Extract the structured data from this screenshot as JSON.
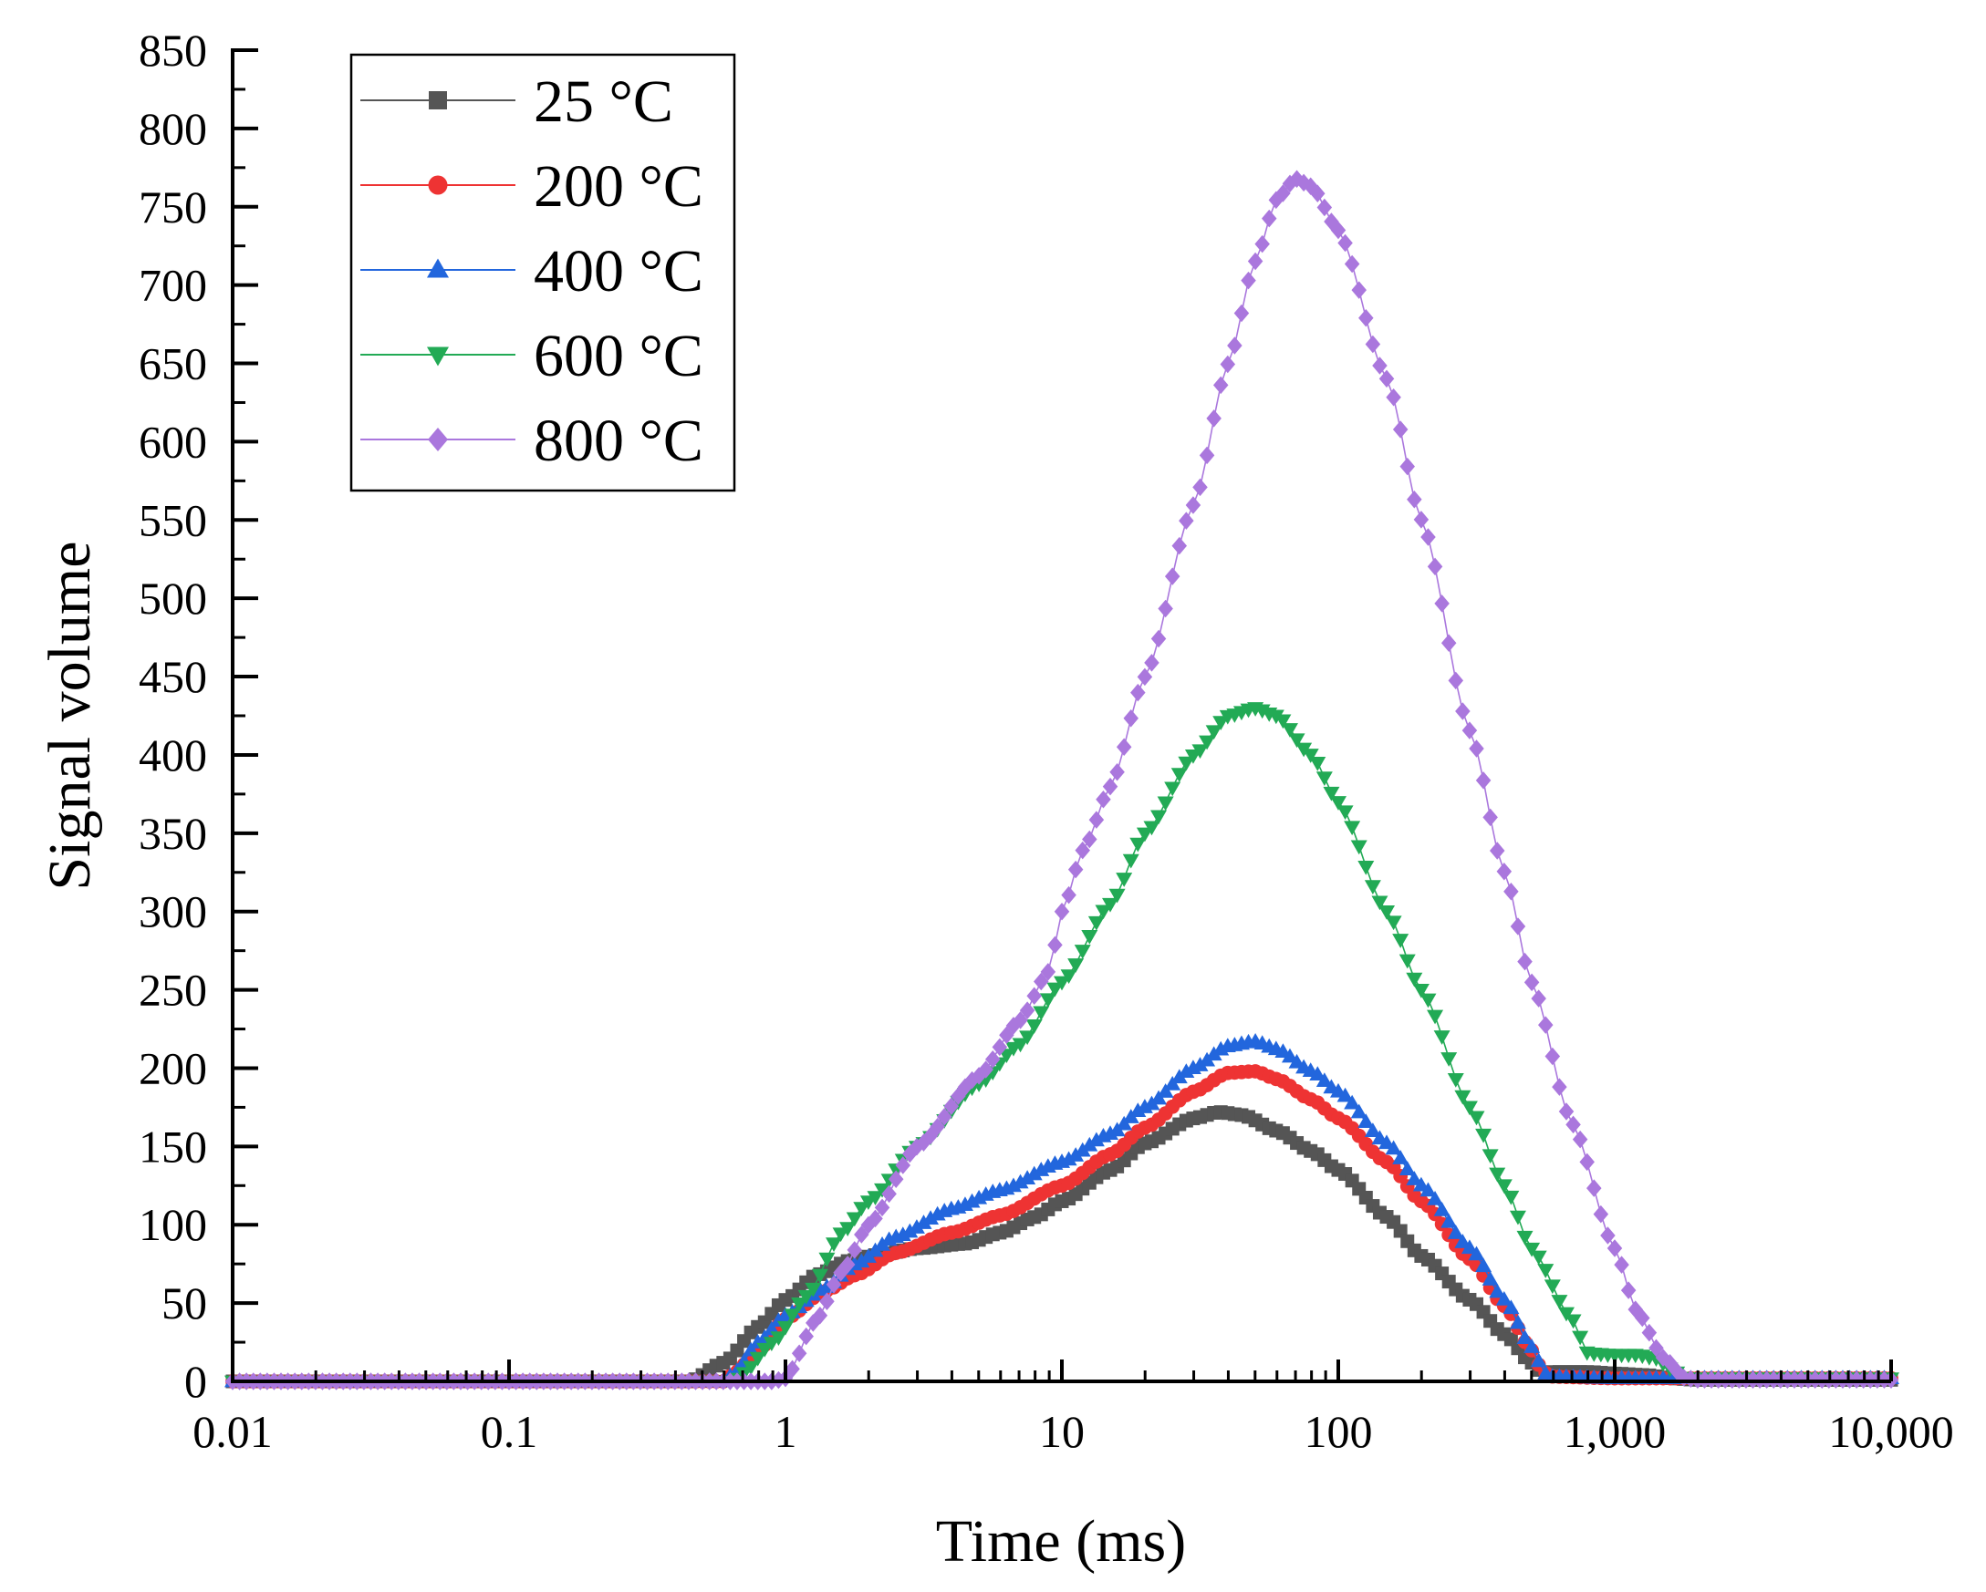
{
  "chart_data": {
    "type": "scatter",
    "xscale": "log",
    "xlabel": "Time (ms)",
    "ylabel": "Signal volume",
    "xlim": [
      0.01,
      10000
    ],
    "ylim": [
      0,
      850
    ],
    "xticks": [
      {
        "value": 0.01,
        "label": "0.01"
      },
      {
        "value": 0.1,
        "label": "0.1"
      },
      {
        "value": 1,
        "label": "1"
      },
      {
        "value": 10,
        "label": "10"
      },
      {
        "value": 100,
        "label": "100"
      },
      {
        "value": 1000,
        "label": "1,000"
      },
      {
        "value": 10000,
        "label": "10,000"
      }
    ],
    "yticks": [
      {
        "value": 0,
        "label": "0"
      },
      {
        "value": 50,
        "label": "50"
      },
      {
        "value": 100,
        "label": "100"
      },
      {
        "value": 150,
        "label": "150"
      },
      {
        "value": 200,
        "label": "200"
      },
      {
        "value": 250,
        "label": "250"
      },
      {
        "value": 300,
        "label": "300"
      },
      {
        "value": 350,
        "label": "350"
      },
      {
        "value": 400,
        "label": "400"
      },
      {
        "value": 450,
        "label": "450"
      },
      {
        "value": 500,
        "label": "500"
      },
      {
        "value": 550,
        "label": "550"
      },
      {
        "value": 600,
        "label": "600"
      },
      {
        "value": 650,
        "label": "650"
      },
      {
        "value": 700,
        "label": "700"
      },
      {
        "value": 750,
        "label": "750"
      },
      {
        "value": 800,
        "label": "800"
      },
      {
        "value": 850,
        "label": "850"
      }
    ],
    "legend_position": "top-left",
    "grid": false,
    "sampling": {
      "x_start": 0.01,
      "x_end": 10000,
      "points_per_decade": 40
    },
    "series": [
      {
        "name": "25 °C",
        "color": "#555555",
        "marker": "square",
        "keypoints": [
          [
            0.01,
            0
          ],
          [
            0.45,
            0
          ],
          [
            0.6,
            12
          ],
          [
            0.8,
            35
          ],
          [
            1.0,
            52
          ],
          [
            1.3,
            68
          ],
          [
            1.7,
            77
          ],
          [
            2.2,
            81
          ],
          [
            3,
            85
          ],
          [
            4.5,
            88
          ],
          [
            6,
            95
          ],
          [
            8,
            105
          ],
          [
            10,
            115
          ],
          [
            15,
            135
          ],
          [
            20,
            152
          ],
          [
            30,
            168
          ],
          [
            37,
            172
          ],
          [
            45,
            170
          ],
          [
            60,
            160
          ],
          [
            80,
            147
          ],
          [
            100,
            135
          ],
          [
            150,
            105
          ],
          [
            200,
            80
          ],
          [
            300,
            52
          ],
          [
            400,
            30
          ],
          [
            500,
            12
          ],
          [
            550,
            5
          ],
          [
            600,
            6
          ],
          [
            800,
            6
          ],
          [
            1000,
            5
          ],
          [
            1300,
            4
          ],
          [
            1600,
            2
          ],
          [
            2000,
            1
          ],
          [
            10000,
            1
          ]
        ]
      },
      {
        "name": "200 °C",
        "color": "#ee3333",
        "marker": "circle",
        "keypoints": [
          [
            0.01,
            0
          ],
          [
            0.6,
            0
          ],
          [
            0.65,
            5
          ],
          [
            0.8,
            20
          ],
          [
            1.0,
            40
          ],
          [
            1.4,
            58
          ],
          [
            1.8,
            68
          ],
          [
            2.5,
            82
          ],
          [
            4,
            95
          ],
          [
            6,
            106
          ],
          [
            10,
            125
          ],
          [
            15,
            145
          ],
          [
            20,
            162
          ],
          [
            30,
            185
          ],
          [
            40,
            197
          ],
          [
            50,
            198
          ],
          [
            60,
            193
          ],
          [
            80,
            180
          ],
          [
            100,
            168
          ],
          [
            150,
            140
          ],
          [
            200,
            115
          ],
          [
            300,
            78
          ],
          [
            400,
            48
          ],
          [
            500,
            20
          ],
          [
            550,
            6
          ],
          [
            600,
            3
          ],
          [
            1000,
            2
          ],
          [
            2000,
            2
          ],
          [
            10000,
            2
          ]
        ]
      },
      {
        "name": "400 °C",
        "color": "#2266dd",
        "marker": "tri-up",
        "keypoints": [
          [
            0.01,
            0
          ],
          [
            0.6,
            0
          ],
          [
            0.65,
            5
          ],
          [
            0.8,
            25
          ],
          [
            1.0,
            42
          ],
          [
            1.4,
            60
          ],
          [
            1.8,
            75
          ],
          [
            2.5,
            92
          ],
          [
            4,
            110
          ],
          [
            6,
            122
          ],
          [
            10,
            140
          ],
          [
            15,
            158
          ],
          [
            20,
            175
          ],
          [
            30,
            200
          ],
          [
            40,
            214
          ],
          [
            50,
            217
          ],
          [
            60,
            212
          ],
          [
            80,
            198
          ],
          [
            100,
            185
          ],
          [
            150,
            152
          ],
          [
            200,
            125
          ],
          [
            300,
            85
          ],
          [
            400,
            52
          ],
          [
            500,
            22
          ],
          [
            560,
            5
          ],
          [
            600,
            3
          ],
          [
            1000,
            2
          ],
          [
            2000,
            2
          ],
          [
            10000,
            2
          ]
        ]
      },
      {
        "name": "600 °C",
        "color": "#22aa55",
        "marker": "tri-down",
        "keypoints": [
          [
            0.01,
            0
          ],
          [
            0.65,
            0
          ],
          [
            0.7,
            5
          ],
          [
            0.9,
            25
          ],
          [
            1.2,
            55
          ],
          [
            1.6,
            95
          ],
          [
            2,
            115
          ],
          [
            3,
            150
          ],
          [
            5,
            190
          ],
          [
            7,
            215
          ],
          [
            10,
            255
          ],
          [
            15,
            305
          ],
          [
            20,
            350
          ],
          [
            30,
            400
          ],
          [
            40,
            425
          ],
          [
            50,
            430
          ],
          [
            60,
            425
          ],
          [
            80,
            400
          ],
          [
            100,
            370
          ],
          [
            150,
            300
          ],
          [
            200,
            250
          ],
          [
            300,
            175
          ],
          [
            400,
            125
          ],
          [
            500,
            85
          ],
          [
            700,
            40
          ],
          [
            800,
            18
          ],
          [
            1000,
            17
          ],
          [
            1200,
            17
          ],
          [
            1400,
            15
          ],
          [
            1600,
            8
          ],
          [
            1800,
            2
          ],
          [
            10000,
            2
          ]
        ]
      },
      {
        "name": "800 °C",
        "color": "#aa77dd",
        "marker": "diamond",
        "keypoints": [
          [
            0.01,
            0
          ],
          [
            0.9,
            0
          ],
          [
            1.0,
            2
          ],
          [
            1.3,
            40
          ],
          [
            1.6,
            70
          ],
          [
            2,
            100
          ],
          [
            3,
            150
          ],
          [
            5,
            195
          ],
          [
            7,
            230
          ],
          [
            9,
            262
          ],
          [
            10,
            300
          ],
          [
            12,
            340
          ],
          [
            15,
            380
          ],
          [
            20,
            450
          ],
          [
            30,
            560
          ],
          [
            40,
            650
          ],
          [
            50,
            715
          ],
          [
            60,
            755
          ],
          [
            70,
            768
          ],
          [
            80,
            763
          ],
          [
            100,
            735
          ],
          [
            150,
            640
          ],
          [
            200,
            550
          ],
          [
            300,
            415
          ],
          [
            400,
            325
          ],
          [
            500,
            255
          ],
          [
            700,
            165
          ],
          [
            1000,
            85
          ],
          [
            1200,
            45
          ],
          [
            1500,
            15
          ],
          [
            1800,
            2
          ],
          [
            2000,
            1
          ],
          [
            10000,
            1
          ]
        ]
      }
    ]
  }
}
